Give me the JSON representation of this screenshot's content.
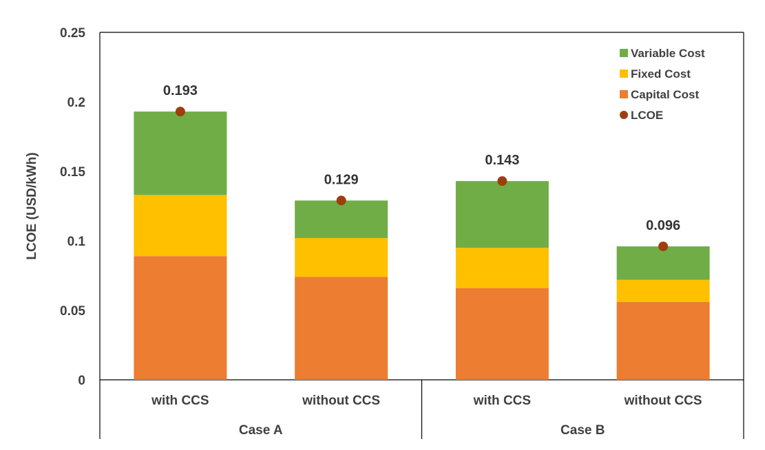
{
  "chart_data": {
    "type": "bar",
    "stacked": true,
    "groups": [
      "Case A",
      "Case B"
    ],
    "categories": [
      "with CCS",
      "without CCS",
      "with CCS",
      "without CCS"
    ],
    "category_groups": [
      "Case A",
      "Case A",
      "Case B",
      "Case B"
    ],
    "series": [
      {
        "name": "Capital Cost",
        "color": "#ED7D31",
        "values": [
          0.089,
          0.074,
          0.066,
          0.056
        ]
      },
      {
        "name": "Fixed Cost",
        "color": "#FFC000",
        "values": [
          0.044,
          0.028,
          0.029,
          0.016
        ]
      },
      {
        "name": "Variable Cost",
        "color": "#70AD47",
        "values": [
          0.06,
          0.027,
          0.048,
          0.024
        ]
      }
    ],
    "lcoe": {
      "name": "LCOE",
      "color": "#9E3E10",
      "values": [
        0.193,
        0.129,
        0.143,
        0.096
      ],
      "labels": [
        "0.193",
        "0.129",
        "0.143",
        "0.096"
      ]
    },
    "ylabel": "LCOE (USD/kWh)",
    "xlabel": "",
    "ylim": [
      0,
      0.25
    ],
    "yticks": [
      "0",
      "0.05",
      "0.1",
      "0.15",
      "0.2",
      "0.25"
    ],
    "yticks_values": [
      0,
      0.05,
      0.1,
      0.15,
      0.2,
      0.25
    ],
    "legend_order": [
      "Variable Cost",
      "Fixed Cost",
      "Capital Cost",
      "LCOE"
    ],
    "legend_position": "top-right",
    "grid": false
  }
}
